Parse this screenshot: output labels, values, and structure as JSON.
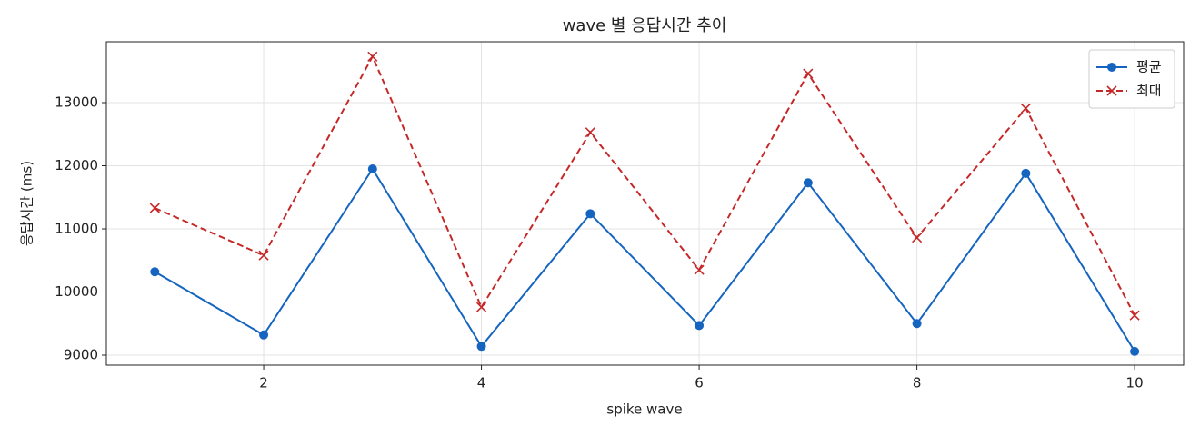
{
  "chart_data": {
    "type": "line",
    "title": "wave 별 응답시간 추이",
    "xlabel": "spike wave",
    "ylabel": "응답시간 (ms)",
    "x": [
      1,
      2,
      3,
      4,
      5,
      6,
      7,
      8,
      9,
      10
    ],
    "series": [
      {
        "name": "평균",
        "color": "#1565c0",
        "marker": "o",
        "linestyle": "solid",
        "values": [
          10320,
          9320,
          11950,
          9140,
          11240,
          9470,
          11730,
          9500,
          11880,
          9060
        ]
      },
      {
        "name": "최대",
        "color": "#c62828",
        "marker": "x",
        "linestyle": "dashed",
        "values": [
          11330,
          10580,
          13730,
          9760,
          12530,
          10350,
          13460,
          10860,
          12910,
          9630
        ]
      }
    ],
    "xlim": [
      0.555,
      10.45
    ],
    "xticks": [
      2,
      4,
      6,
      8,
      10
    ],
    "ylim": [
      8842,
      13964
    ],
    "yticks": [
      9000,
      10000,
      11000,
      12000,
      13000
    ],
    "grid": true,
    "legend": "upper right"
  }
}
